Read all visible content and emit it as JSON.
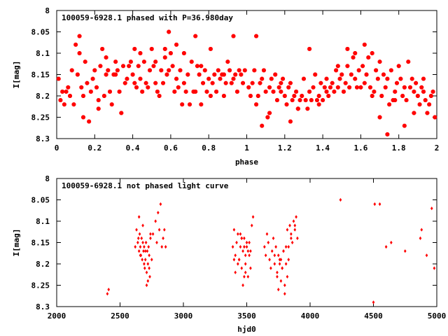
{
  "chart_data": [
    {
      "type": "scatter",
      "title": "100059-6928.1 phased with P=36.980day",
      "xlabel": "phase",
      "ylabel": "I[mag]",
      "xlim": [
        0,
        2
      ],
      "ylim": [
        8.3,
        8
      ],
      "y_inverted": true,
      "xticks": [
        "0",
        "0.2",
        "0.4",
        "0.6",
        "0.8",
        "1",
        "1.2",
        "1.4",
        "1.6",
        "1.8",
        "2"
      ],
      "yticks": [
        "8",
        "8.05",
        "8.1",
        "8.15",
        "8.2",
        "8.25",
        "8.3"
      ],
      "marker_color": "#ff0000",
      "series": [
        {
          "x": [
            0.01,
            0.02,
            0.03,
            0.04,
            0.05,
            0.06,
            0.07,
            0.08,
            0.09,
            0.1,
            0.11,
            0.12,
            0.13,
            0.14,
            0.15,
            0.16,
            0.17,
            0.18,
            0.19,
            0.2,
            0.21,
            0.22,
            0.23,
            0.24,
            0.25,
            0.26,
            0.27,
            0.28,
            0.29,
            0.3,
            0.31,
            0.32,
            0.33,
            0.34,
            0.35,
            0.36,
            0.37,
            0.38,
            0.39,
            0.4,
            0.41,
            0.42,
            0.43,
            0.44,
            0.45,
            0.46,
            0.47,
            0.48,
            0.49,
            0.5,
            0.51,
            0.52,
            0.53,
            0.54,
            0.55,
            0.56,
            0.57,
            0.58,
            0.59,
            0.6,
            0.61,
            0.62,
            0.63,
            0.64,
            0.65,
            0.66,
            0.67,
            0.68,
            0.69,
            0.7,
            0.71,
            0.72,
            0.73,
            0.74,
            0.75,
            0.76,
            0.77,
            0.78,
            0.79,
            0.8,
            0.81,
            0.82,
            0.83,
            0.84,
            0.85,
            0.86,
            0.87,
            0.88,
            0.89,
            0.9,
            0.91,
            0.92,
            0.93,
            0.94,
            0.95,
            0.96,
            0.97,
            0.98,
            0.99,
            1.01,
            1.02,
            1.03,
            1.04,
            1.05,
            1.06,
            1.07,
            1.08,
            1.09,
            1.1,
            1.11,
            1.12,
            1.13,
            1.14,
            1.15,
            1.16,
            1.17,
            1.18,
            1.19,
            1.2,
            1.21,
            1.22,
            1.23,
            1.24,
            1.25,
            1.26,
            1.27,
            1.28,
            1.29,
            1.3,
            1.31,
            1.32,
            1.33,
            1.34,
            1.35,
            1.36,
            1.37,
            1.38,
            1.39,
            1.4,
            1.41,
            1.42,
            1.43,
            1.44,
            1.45,
            1.46,
            1.47,
            1.48,
            1.49,
            1.5,
            1.51,
            1.52,
            1.53,
            1.54,
            1.55,
            1.56,
            1.57,
            1.58,
            1.59,
            1.6,
            1.61,
            1.62,
            1.63,
            1.64,
            1.65,
            1.66,
            1.67,
            1.68,
            1.69,
            1.7,
            1.71,
            1.72,
            1.73,
            1.74,
            1.75,
            1.76,
            1.77,
            1.78,
            1.79,
            1.8,
            1.81,
            1.82,
            1.83,
            1.84,
            1.85,
            1.86,
            1.87,
            1.88,
            1.89,
            1.9,
            1.91,
            1.92,
            1.93,
            1.94,
            1.95,
            1.96,
            1.97,
            1.98,
            1.99,
            0.12,
            0.14,
            0.22,
            0.26,
            0.31,
            0.41,
            0.44,
            0.52,
            0.57,
            0.59,
            0.63,
            0.67,
            0.73,
            0.76,
            0.81,
            0.88,
            0.93,
            1.05,
            1.08,
            1.12,
            1.18,
            1.23,
            1.27,
            1.33,
            1.38,
            1.42,
            1.48,
            1.53,
            1.57,
            1.62,
            1.66,
            1.7,
            1.74,
            1.78,
            1.83,
            1.88,
            1.93
          ],
          "y": [
            8.16,
            8.21,
            8.19,
            8.22,
            8.19,
            8.18,
            8.2,
            8.14,
            8.22,
            8.08,
            8.15,
            8.06,
            8.18,
            8.25,
            8.12,
            8.17,
            8.26,
            8.19,
            8.16,
            8.14,
            8.18,
            8.23,
            8.13,
            8.09,
            8.2,
            8.15,
            8.14,
            8.19,
            8.22,
            8.15,
            8.12,
            8.14,
            8.19,
            8.24,
            8.13,
            8.17,
            8.16,
            8.13,
            8.12,
            8.15,
            8.17,
            8.18,
            8.13,
            8.16,
            8.19,
            8.12,
            8.17,
            8.18,
            8.14,
            8.09,
            8.13,
            8.17,
            8.19,
            8.2,
            8.14,
            8.17,
            8.11,
            8.15,
            8.14,
            8.1,
            8.13,
            8.19,
            8.16,
            8.18,
            8.14,
            8.22,
            8.17,
            8.19,
            8.15,
            8.22,
            8.12,
            8.19,
            8.19,
            8.13,
            8.15,
            8.22,
            8.17,
            8.14,
            8.19,
            8.16,
            8.2,
            8.17,
            8.15,
            8.19,
            8.14,
            8.16,
            8.15,
            8.2,
            8.17,
            8.12,
            8.14,
            8.17,
            8.16,
            8.15,
            8.19,
            8.14,
            8.15,
            8.17,
            8.14,
            8.18,
            8.2,
            8.17,
            8.14,
            8.22,
            8.2,
            8.17,
            8.16,
            8.14,
            8.19,
            8.25,
            8.18,
            8.16,
            8.19,
            8.15,
            8.21,
            8.18,
            8.19,
            8.16,
            8.2,
            8.22,
            8.18,
            8.17,
            8.21,
            8.2,
            8.19,
            8.23,
            8.21,
            8.2,
            8.16,
            8.21,
            8.23,
            8.19,
            8.21,
            8.18,
            8.15,
            8.21,
            8.2,
            8.17,
            8.21,
            8.18,
            8.16,
            8.2,
            8.18,
            8.17,
            8.19,
            8.14,
            8.18,
            8.16,
            8.15,
            8.19,
            8.17,
            8.13,
            8.18,
            8.15,
            8.11,
            8.16,
            8.18,
            8.14,
            8.18,
            8.13,
            8.17,
            8.15,
            8.11,
            8.18,
            8.2,
            8.19,
            8.14,
            8.16,
            8.12,
            8.2,
            8.15,
            8.18,
            8.16,
            8.22,
            8.14,
            8.21,
            8.19,
            8.17,
            8.13,
            8.16,
            8.2,
            8.18,
            8.21,
            8.12,
            8.18,
            8.16,
            8.19,
            8.17,
            8.2,
            8.22,
            8.18,
            8.19,
            8.21,
            8.24,
            8.22,
            8.2,
            8.19,
            8.25,
            8.1,
            8.2,
            8.21,
            8.11,
            8.15,
            8.09,
            8.1,
            8.12,
            8.09,
            8.05,
            8.08,
            8.1,
            8.06,
            8.13,
            8.09,
            8.15,
            8.06,
            8.06,
            8.27,
            8.24,
            8.17,
            8.26,
            8.23,
            8.09,
            8.22,
            8.19,
            8.13,
            8.09,
            8.1,
            8.08,
            8.1,
            8.25,
            8.29,
            8.21,
            8.27,
            8.24,
            8.16
          ]
        }
      ]
    },
    {
      "type": "scatter",
      "title": "100059-6928.1 not phased light curve",
      "xlabel": "hjd0",
      "ylabel": "I[mag]",
      "xlim": [
        2000,
        5000
      ],
      "ylim": [
        8.3,
        8
      ],
      "y_inverted": true,
      "xticks": [
        "2000",
        "2500",
        "3000",
        "3500",
        "4000",
        "4500",
        "5000"
      ],
      "yticks": [
        "8",
        "8.05",
        "8.1",
        "8.15",
        "8.2",
        "8.25",
        "8.3"
      ],
      "marker_color": "#ff0000",
      "series": [
        {
          "x": [
            2400,
            2410,
            2620,
            2630,
            2640,
            2645,
            2650,
            2655,
            2660,
            2665,
            2670,
            2675,
            2680,
            2685,
            2690,
            2695,
            2700,
            2705,
            2710,
            2715,
            2720,
            2725,
            2730,
            2735,
            2740,
            2750,
            2760,
            2780,
            2790,
            2800,
            2810,
            2820,
            2830,
            2840,
            2850,
            2860,
            2700,
            2720,
            2660,
            2690,
            2740,
            2710,
            2680,
            2650,
            2730,
            3390,
            3400,
            3410,
            3420,
            3430,
            3440,
            3450,
            3460,
            3470,
            3480,
            3490,
            3500,
            3510,
            3520,
            3530,
            3540,
            3550,
            3410,
            3440,
            3470,
            3500,
            3430,
            3460,
            3490,
            3520,
            3450,
            3480,
            3510,
            3400,
            3530,
            3480,
            3460,
            3490,
            3640,
            3650,
            3660,
            3670,
            3680,
            3690,
            3700,
            3710,
            3720,
            3730,
            3740,
            3750,
            3760,
            3770,
            3780,
            3790,
            3800,
            3810,
            3820,
            3830,
            3840,
            3850,
            3860,
            3870,
            3880,
            3890,
            3900,
            3720,
            3750,
            3780,
            3810,
            3740,
            3770,
            3800,
            3760,
            3790,
            3820,
            3850,
            3830,
            3880,
            4240,
            4500,
            4510,
            4550,
            4600,
            4640,
            4750,
            4870,
            4880,
            4920,
            4960,
            4980
          ],
          "y": [
            8.27,
            8.26,
            8.16,
            8.12,
            8.15,
            8.14,
            8.17,
            8.13,
            8.16,
            8.18,
            8.14,
            8.19,
            8.15,
            8.17,
            8.16,
            8.21,
            8.19,
            8.15,
            8.22,
            8.17,
            8.2,
            8.16,
            8.18,
            8.23,
            8.14,
            8.19,
            8.13,
            8.1,
            8.15,
            8.08,
            8.12,
            8.06,
            8.16,
            8.14,
            8.12,
            8.16,
            8.17,
            8.24,
            8.18,
            8.2,
            8.13,
            8.25,
            8.11,
            8.09,
            8.21,
            8.16,
            8.12,
            8.18,
            8.15,
            8.13,
            8.19,
            8.16,
            8.21,
            8.17,
            8.14,
            8.2,
            8.15,
            8.23,
            8.18,
            8.17,
            8.11,
            8.09,
            8.22,
            8.19,
            8.25,
            8.16,
            8.2,
            8.14,
            8.18,
            8.15,
            8.13,
            8.23,
            8.17,
            8.19,
            8.21,
            8.16,
            8.14,
            8.22,
            8.16,
            8.18,
            8.13,
            8.15,
            8.19,
            8.21,
            8.17,
            8.14,
            8.2,
            8.16,
            8.22,
            8.18,
            8.19,
            8.24,
            8.21,
            8.17,
            8.25,
            8.2,
            8.23,
            8.19,
            8.11,
            8.13,
            8.15,
            8.1,
            8.12,
            8.09,
            8.14,
            8.18,
            8.26,
            8.21,
            8.16,
            8.23,
            8.19,
            8.27,
            8.2,
            8.17,
            8.12,
            8.14,
            8.16,
            8.11,
            8.05,
            8.29,
            8.06,
            8.06,
            8.16,
            8.15,
            8.17,
            8.14,
            8.12,
            8.18,
            8.07,
            8.21
          ]
        }
      ]
    }
  ]
}
